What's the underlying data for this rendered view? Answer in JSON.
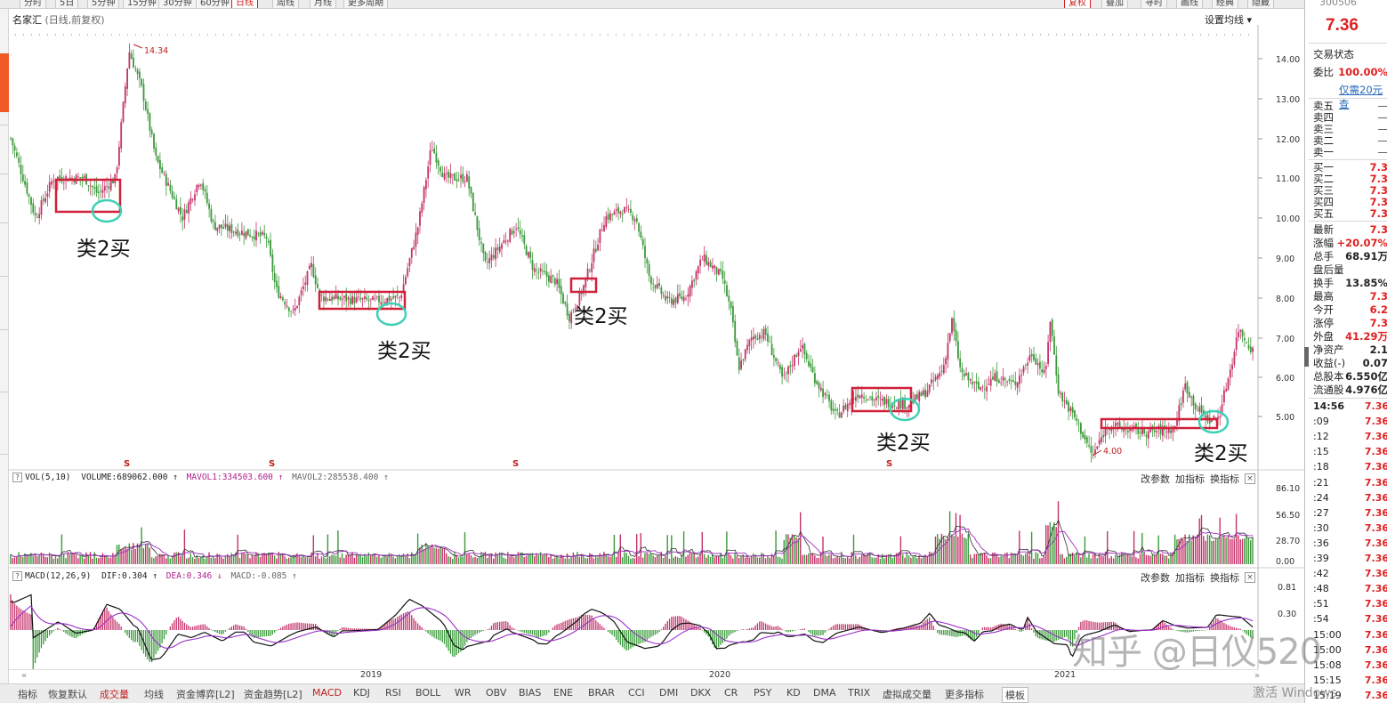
{
  "toolbar": {
    "periods": [
      "分时",
      "5日",
      "5分钟",
      "15分钟",
      "30分钟",
      "60分钟",
      "日线",
      "周线",
      "月线",
      "更多周期"
    ],
    "active_period": "日线",
    "right_buttons": [
      "复权",
      "叠加",
      "寻时",
      "画线",
      "经典",
      "隐藏"
    ]
  },
  "chart_header": {
    "name": "名家汇",
    "sub": "(日线,前复权)",
    "ma_settings": "设置均线"
  },
  "price_axis": [
    "14.00",
    "13.00",
    "12.00",
    "11.00",
    "10.00",
    "9.00",
    "8.00",
    "7.00",
    "6.00",
    "5.00"
  ],
  "annotations": {
    "high_label": "14.34",
    "low_label": "4.00",
    "signal_label": "类2买",
    "marker_symbol": "S"
  },
  "volume_panel": {
    "title": "VOL(5,10)",
    "volume": "VOLUME:689062.000",
    "mavol1": "MAVOL1:334503.600",
    "mavol2": "MAVOL2:285538.400",
    "axis": [
      "86.10",
      "56.50",
      "28.70",
      "0.00"
    ],
    "buttons": [
      "改参数",
      "加指标",
      "换指标"
    ],
    "close": "×"
  },
  "macd_panel": {
    "title": "MACD(12,26,9)",
    "dif": "DIF:0.304",
    "dea": "DEA:0.346",
    "macd": "MACD:-0.085",
    "axis": [
      "0.81",
      "0.30"
    ],
    "buttons": [
      "改参数",
      "加指标",
      "换指标"
    ],
    "close": "×"
  },
  "time_axis": {
    "labels": [
      "2019",
      "2020",
      "2021"
    ],
    "left_arrow": "«",
    "right_arrow": "»"
  },
  "bottom_tabs": [
    "指标",
    "恢复默认",
    "成交量",
    "均线",
    "资金博弈[L2]",
    "资金趋势[L2]",
    "MACD",
    "KDJ",
    "RSI",
    "BOLL",
    "WR",
    "OBV",
    "BIAS",
    "ENE",
    "BRAR",
    "CCI",
    "DMI",
    "DKX",
    "CR",
    "PSY",
    "KD",
    "DMA",
    "TRIX",
    "虚拟成交量",
    "更多指标",
    "模板"
  ],
  "right_panel": {
    "code": "300506",
    "price": "7.36",
    "status_label": "交易状态",
    "weibi_label": "委比",
    "weibi_value": "100.00%",
    "link": "仅需20元查",
    "sell": [
      {
        "k": "卖五",
        "v": "—"
      },
      {
        "k": "卖四",
        "v": "—"
      },
      {
        "k": "卖三",
        "v": "—"
      },
      {
        "k": "卖二",
        "v": "—"
      },
      {
        "k": "卖一",
        "v": "—"
      }
    ],
    "buy": [
      {
        "k": "买一",
        "v": "7.3"
      },
      {
        "k": "买二",
        "v": "7.3"
      },
      {
        "k": "买三",
        "v": "7.3"
      },
      {
        "k": "买四",
        "v": "7.3"
      },
      {
        "k": "买五",
        "v": "7.3"
      }
    ],
    "stats": [
      {
        "k": "最新",
        "v": "7.3",
        "c": "red"
      },
      {
        "k": "涨幅",
        "v": "+20.07%",
        "c": "red"
      },
      {
        "k": "总手",
        "v": "68.91万",
        "c": "black"
      },
      {
        "k": "盘后量",
        "v": "",
        "c": "black"
      },
      {
        "k": "换手",
        "v": "13.85%",
        "c": "black"
      },
      {
        "k": "最高",
        "v": "7.3",
        "c": "red"
      },
      {
        "k": "今开",
        "v": "6.2",
        "c": "red"
      },
      {
        "k": "涨停",
        "v": "7.3",
        "c": "red"
      },
      {
        "k": "外盘",
        "v": "41.29万",
        "c": "red"
      },
      {
        "k": "净资产",
        "v": "2.1",
        "c": "black"
      },
      {
        "k": "收益(-)",
        "v": "0.07",
        "c": "black"
      },
      {
        "k": "总股本",
        "v": "6.550亿",
        "c": "black"
      },
      {
        "k": "流通股",
        "v": "4.976亿",
        "c": "black"
      }
    ],
    "ticks": [
      {
        "t": "14:56",
        "p": "7.36"
      },
      {
        "t": ":09",
        "p": "7.36"
      },
      {
        "t": ":12",
        "p": "7.36"
      },
      {
        "t": ":15",
        "p": "7.36"
      },
      {
        "t": ":18",
        "p": "7.36"
      },
      {
        "t": ":21",
        "p": "7.36"
      },
      {
        "t": ":24",
        "p": "7.36"
      },
      {
        "t": ":27",
        "p": "7.36"
      },
      {
        "t": ":30",
        "p": "7.36"
      },
      {
        "t": ":36",
        "p": "7.36"
      },
      {
        "t": ":39",
        "p": "7.36"
      },
      {
        "t": ":42",
        "p": "7.36"
      },
      {
        "t": ":48",
        "p": "7.36"
      },
      {
        "t": ":51",
        "p": "7.36"
      },
      {
        "t": ":54",
        "p": "7.36"
      },
      {
        "t": "15:00",
        "p": "7.36"
      },
      {
        "t": "15:00",
        "p": "7.36"
      },
      {
        "t": "15:08",
        "p": "7.36"
      },
      {
        "t": "15:15",
        "p": "7.36"
      },
      {
        "t": "15:19",
        "p": "7.36"
      }
    ]
  },
  "watermark": "知乎 @日仪520",
  "activation": "激活 Windows"
}
